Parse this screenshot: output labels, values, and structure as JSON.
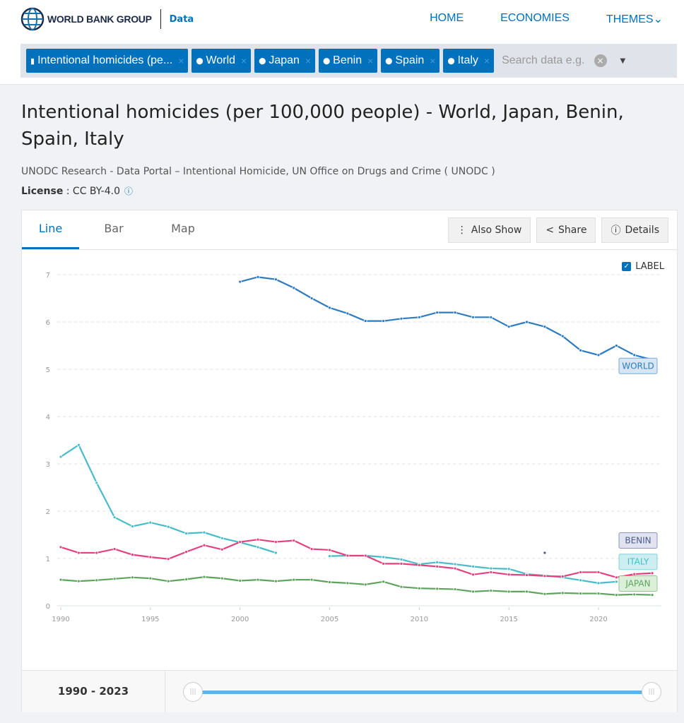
{
  "header": {
    "brand": "WORLD BANK GROUP",
    "section": "Data",
    "nav": [
      "HOME",
      "ECONOMIES",
      "THEMES"
    ]
  },
  "filters": {
    "chips": [
      {
        "label": "Intentional homicides (pe...",
        "icon": "bar-chart-icon"
      },
      {
        "label": "World",
        "icon": "map-pin-icon"
      },
      {
        "label": "Japan",
        "icon": "map-pin-icon"
      },
      {
        "label": "Benin",
        "icon": "map-pin-icon"
      },
      {
        "label": "Spain",
        "icon": "map-pin-icon"
      },
      {
        "label": "Italy",
        "icon": "map-pin-icon"
      }
    ],
    "remove": "×",
    "placeholder": "Search data e.g.",
    "clear": "×"
  },
  "page": {
    "title": "Intentional homicides (per 100,000 people) - World, Japan, Benin, Spain, Italy",
    "source": "UNODC Research - Data Portal – Intentional Homicide, UN Office on Drugs and Crime ( UNODC )",
    "license_label": "License",
    "license_value": " : CC BY-4.0",
    "info": "ⓘ"
  },
  "tabs": [
    "Line",
    "Bar",
    "Map"
  ],
  "actions": [
    {
      "icon": "⋮",
      "label": "Also Show"
    },
    {
      "icon": "<",
      "label": "Share"
    },
    {
      "icon": "ⓘ",
      "label": "Details"
    }
  ],
  "label_toggle": {
    "label": "LABEL",
    "checked": true
  },
  "range": {
    "label": "1990 - 2023",
    "start": 1990,
    "end": 2023
  },
  "chart_data": {
    "type": "line",
    "title": "",
    "xlabel": "",
    "ylabel": "",
    "xlim": [
      1990,
      2023
    ],
    "ylim": [
      0,
      7
    ],
    "yticks": [
      0,
      1,
      2,
      3,
      4,
      5,
      6,
      7
    ],
    "xticks": [
      1990,
      1995,
      2000,
      2005,
      2010,
      2015,
      2020
    ],
    "grid": true,
    "series": [
      {
        "name": "WORLD",
        "color": "#2e7bbf",
        "label_bg": "#d6e6f4",
        "show_label": true,
        "start": 2000,
        "values": [
          6.85,
          6.95,
          6.9,
          6.72,
          6.5,
          6.3,
          6.18,
          6.02,
          6.02,
          6.07,
          6.1,
          6.2,
          6.2,
          6.1,
          6.1,
          5.9,
          6.0,
          5.9,
          5.7,
          5.4,
          5.3,
          5.5,
          5.3,
          5.2
        ]
      },
      {
        "name": "BENIN",
        "color": "#4a5a8c",
        "label_bg": "#e1e3f0",
        "show_label": true,
        "start": 2017,
        "values": [
          1.12
        ]
      },
      {
        "name": "ITALY",
        "color": "#45bcc8",
        "label_bg": "#cdeef1",
        "show_label": true,
        "start": 1990,
        "values": [
          3.15,
          3.4,
          2.6,
          1.87,
          1.68,
          1.76,
          1.67,
          1.53,
          1.55,
          1.43,
          1.34,
          1.24,
          1.12,
          null,
          null,
          1.05,
          1.06,
          1.06,
          1.03,
          0.98,
          0.88,
          0.92,
          0.88,
          0.83,
          0.79,
          0.78,
          0.67,
          0.64,
          0.6,
          0.54,
          0.48,
          0.51
        ]
      },
      {
        "name": "SPAIN",
        "color": "#e5407e",
        "label_bg": "#f9d9e5",
        "show_label": false,
        "start": 1990,
        "values": [
          1.24,
          1.12,
          1.12,
          1.2,
          1.08,
          1.03,
          0.99,
          1.14,
          1.28,
          1.19,
          1.35,
          1.4,
          1.35,
          1.38,
          1.2,
          1.18,
          1.06,
          1.06,
          0.89,
          0.89,
          0.86,
          0.83,
          0.79,
          0.66,
          0.71,
          0.66,
          0.65,
          0.63,
          0.62,
          0.71,
          0.71,
          0.6,
          0.67,
          0.69
        ]
      },
      {
        "name": "JAPAN",
        "color": "#5ea35e",
        "label_bg": "#dcefd9",
        "show_label": true,
        "start": 1990,
        "values": [
          0.55,
          0.52,
          0.54,
          0.57,
          0.6,
          0.58,
          0.52,
          0.56,
          0.61,
          0.58,
          0.53,
          0.55,
          0.52,
          0.55,
          0.55,
          0.5,
          0.48,
          0.45,
          0.51,
          0.4,
          0.37,
          0.36,
          0.35,
          0.3,
          0.32,
          0.3,
          0.3,
          0.25,
          0.27,
          0.26,
          0.26,
          0.23,
          0.24,
          0.23
        ]
      }
    ]
  }
}
